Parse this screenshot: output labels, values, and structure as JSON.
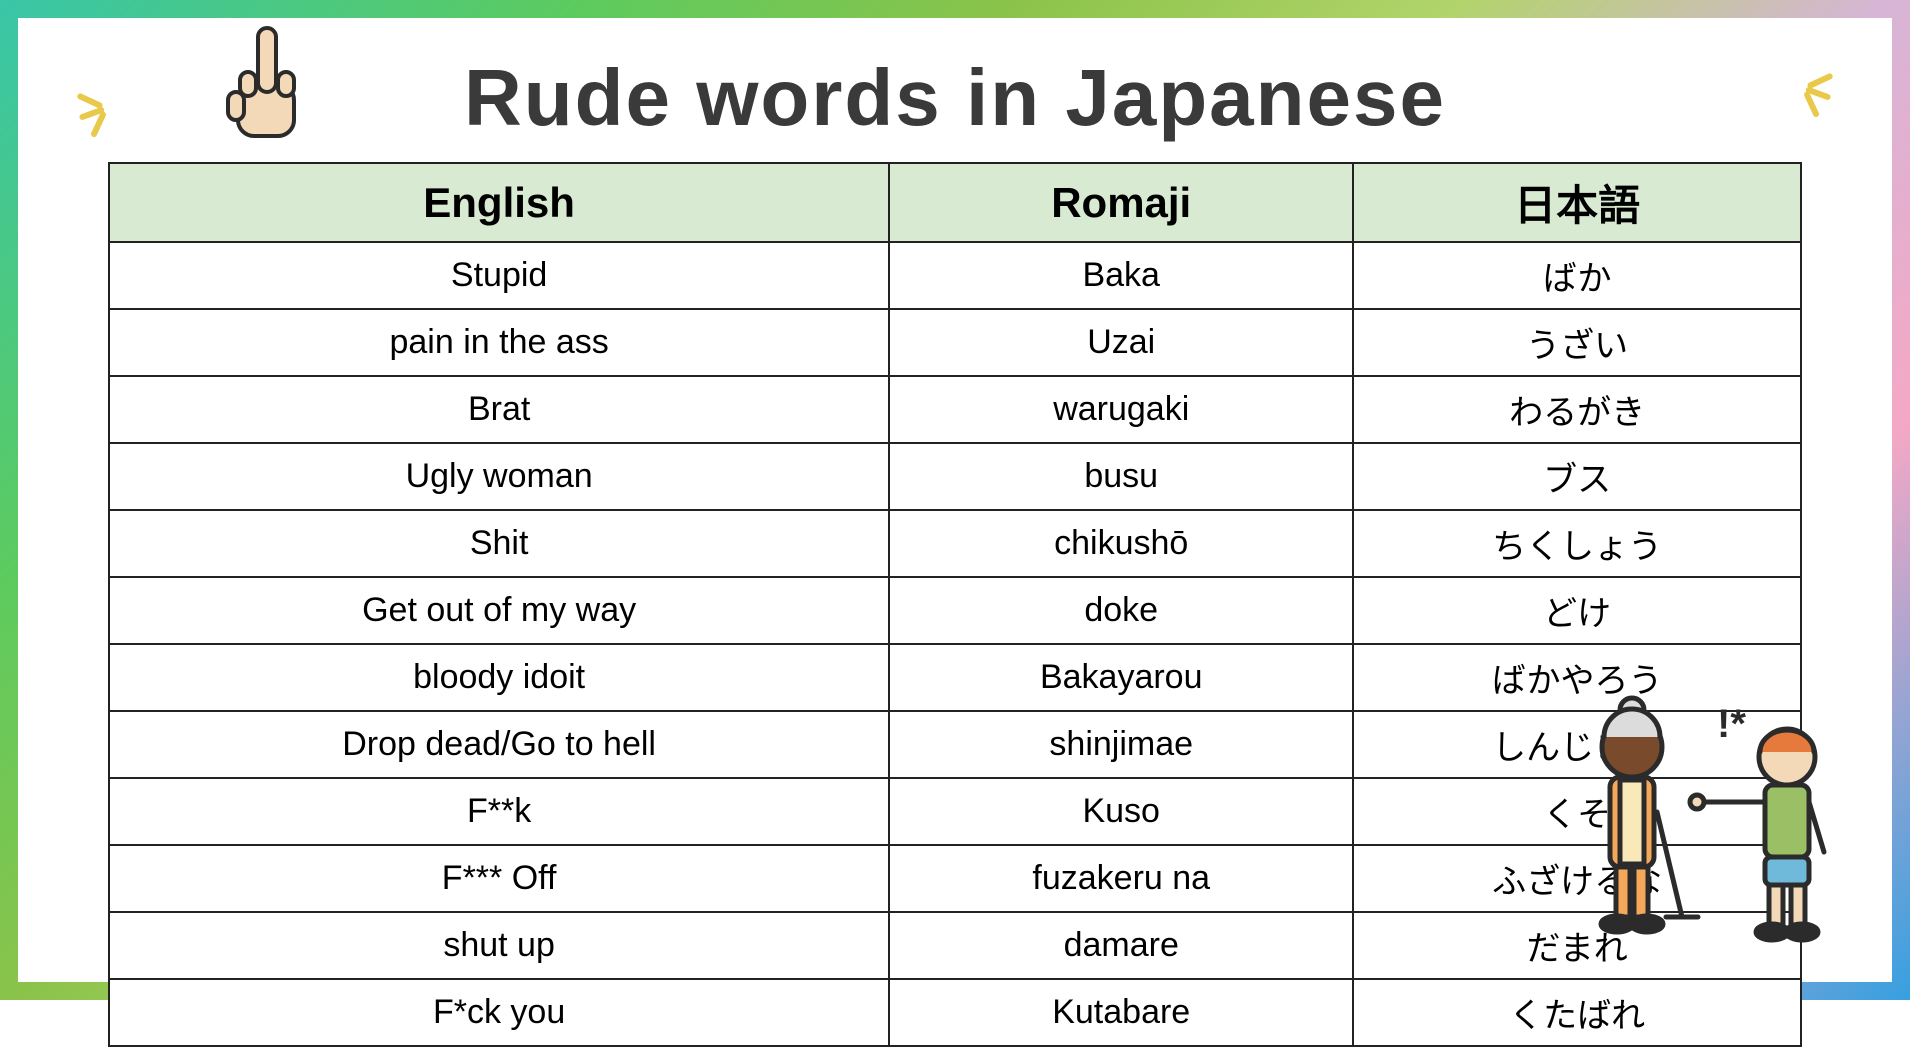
{
  "title": "Rude words in Japanese",
  "table": {
    "columns": [
      "English",
      "Romaji",
      "日本語"
    ],
    "rows": [
      [
        "Stupid",
        "Baka",
        "ばか"
      ],
      [
        "pain in the ass",
        "Uzai",
        "うざい"
      ],
      [
        "Brat",
        "warugaki",
        "わるがき"
      ],
      [
        "Ugly woman",
        "busu",
        "ブス"
      ],
      [
        "Shit",
        "chikushō",
        "ちくしょう"
      ],
      [
        "Get out of my way",
        "doke",
        "どけ"
      ],
      [
        "bloody idoit",
        "Bakayarou",
        "ばかやろう"
      ],
      [
        "Drop dead/Go to hell",
        "shinjimae",
        "しんじまえ"
      ],
      [
        "F**k",
        "Kuso",
        "くそ"
      ],
      [
        "F*** Off",
        "fuzakeru na",
        "ふざけるな"
      ],
      [
        "shut up",
        "damare",
        "だまれ"
      ],
      [
        "F*ck you",
        "Kutabare",
        "くたばれ"
      ]
    ],
    "header_bg": "#d9ead3",
    "border_color": "#222222",
    "header_fontsize": 42,
    "cell_fontsize": 34
  },
  "colors": {
    "title_color": "#3a3a3a",
    "gradient": [
      "#39c6a8",
      "#5ccb5f",
      "#8bc34a",
      "#b1d46a",
      "#d7b5d6",
      "#f4a8c5",
      "#36a0e0"
    ],
    "spark_color": "#e8c94a"
  },
  "swear_bubble": "!*"
}
